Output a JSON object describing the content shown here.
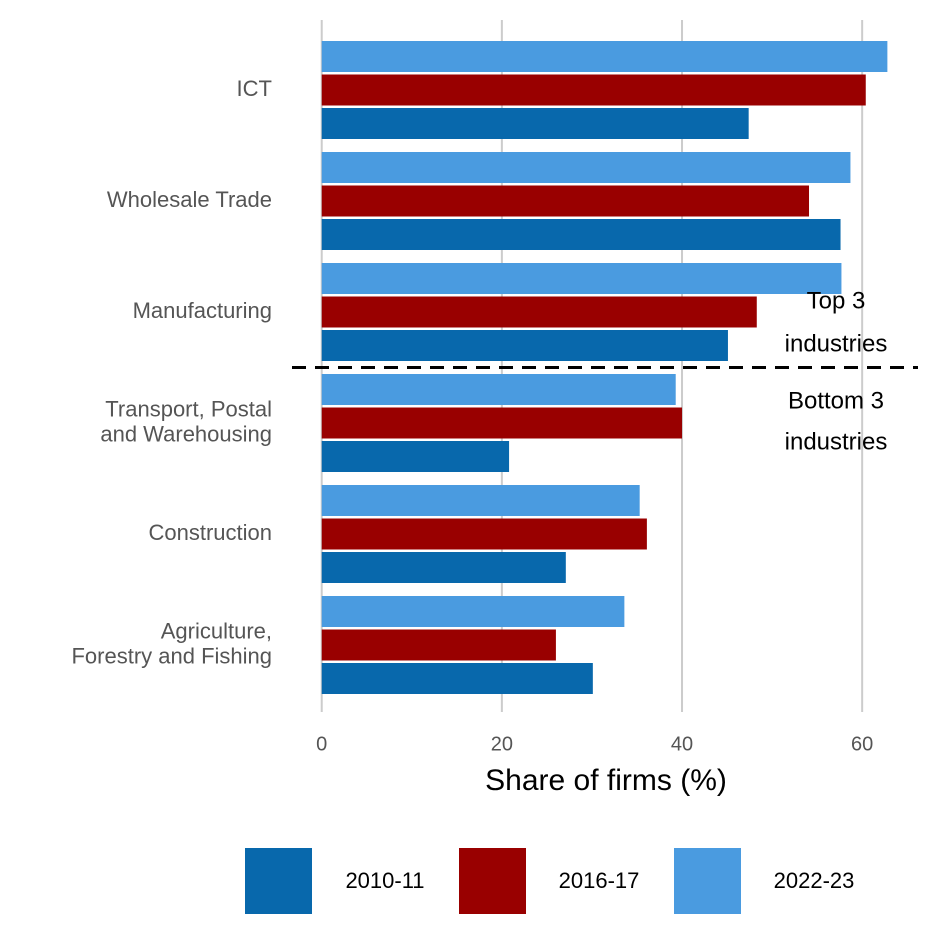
{
  "chart_data": {
    "type": "bar",
    "orientation": "horizontal",
    "xlabel": "Share of firms (%)",
    "categories": [
      "ICT",
      "Wholesale Trade",
      "Manufacturing",
      "Transport, Postal\nand Warehousing",
      "Construction",
      "Agriculture,\nForestry and Fishing"
    ],
    "series": [
      {
        "name": "2010-11",
        "color": "#0868ac",
        "values": [
          47.4,
          57.6,
          45.1,
          20.8,
          27.1,
          30.1
        ]
      },
      {
        "name": "2016-17",
        "color": "#990000",
        "values": [
          60.4,
          54.1,
          48.3,
          40.0,
          36.1,
          26.0
        ]
      },
      {
        "name": "2022-23",
        "color": "#4a9be0",
        "values": [
          62.8,
          58.7,
          57.7,
          39.3,
          35.3,
          33.6
        ]
      }
    ],
    "xlim": [
      -3.3,
      66.2
    ],
    "xticks": [
      0,
      20,
      40,
      60
    ],
    "grid": true,
    "legend": "bottom",
    "annotations": [
      [
        "Top 3",
        "industries"
      ],
      [
        "Bottom 3",
        "industries"
      ]
    ]
  }
}
